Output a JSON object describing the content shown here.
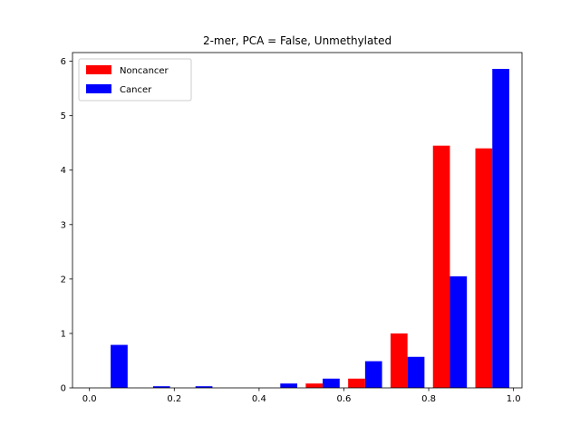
{
  "chart_data": {
    "type": "bar",
    "title": "2-mer, PCA = False,  Unmethylated",
    "xlabel": "",
    "ylabel": "",
    "xlim": [
      -0.04,
      1.02
    ],
    "ylim": [
      0,
      6.16
    ],
    "x_ticks": [
      0.0,
      0.2,
      0.4,
      0.6,
      0.8,
      1.0
    ],
    "x_tick_labels": [
      "0.0",
      "0.2",
      "0.4",
      "0.6",
      "0.8",
      "1.0"
    ],
    "y_ticks": [
      0,
      1,
      2,
      3,
      4,
      5,
      6
    ],
    "y_tick_labels": [
      "0",
      "1",
      "2",
      "3",
      "4",
      "5",
      "6"
    ],
    "bin_edges": [
      0.0,
      0.1,
      0.2,
      0.3,
      0.4,
      0.5,
      0.6,
      0.7,
      0.8,
      0.9,
      1.0
    ],
    "legend_position": "upper-left",
    "grid": false,
    "series": [
      {
        "name": "Noncancer",
        "color": "#ff0000",
        "values": [
          0,
          0,
          0,
          0,
          0,
          0.08,
          0.17,
          1.0,
          4.45,
          4.4
        ]
      },
      {
        "name": "Cancer",
        "color": "#0000ff",
        "values": [
          0.79,
          0.03,
          0.03,
          0,
          0.08,
          0.17,
          0.49,
          0.57,
          2.05,
          5.86
        ]
      }
    ]
  }
}
